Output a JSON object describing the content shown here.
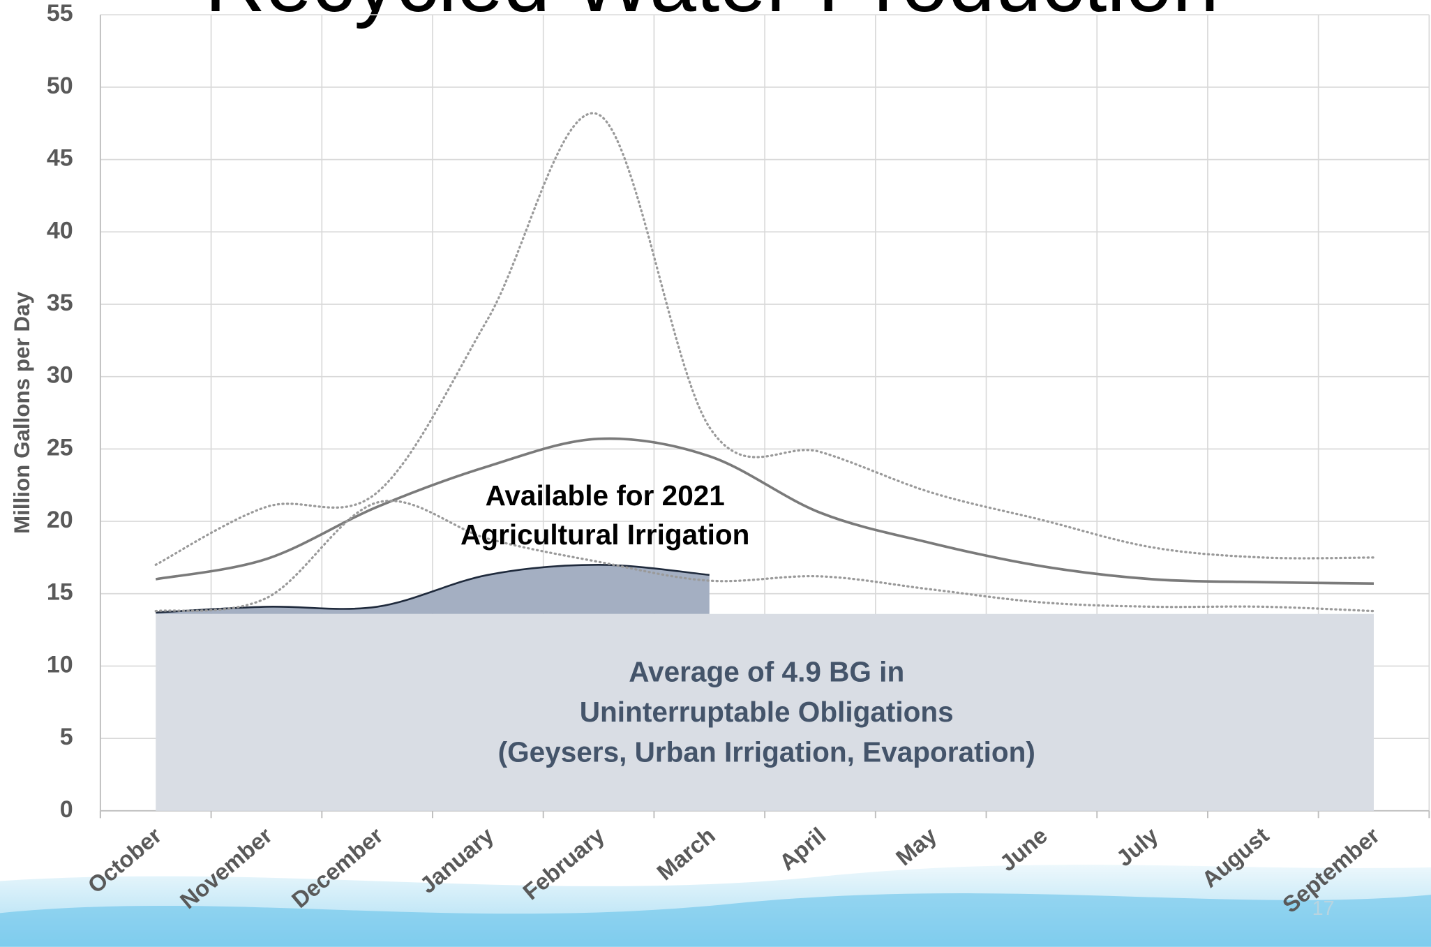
{
  "chart_data": {
    "type": "line",
    "title": "Recycled Water Production",
    "y_label": "Million Gallons per Day",
    "categories": [
      "October",
      "November",
      "December",
      "January",
      "February",
      "March",
      "April",
      "May",
      "June",
      "July",
      "August",
      "September"
    ],
    "ylim": [
      0,
      55
    ],
    "yticks": [
      0,
      5,
      10,
      15,
      20,
      25,
      30,
      35,
      40,
      45,
      50,
      55
    ],
    "grid": true,
    "series": [
      {
        "color": "#7a7a7a",
        "style": "solid",
        "values": [
          16.0,
          17.4,
          21.0,
          23.8,
          25.7,
          24.5,
          20.6,
          18.5,
          16.9,
          16.0,
          15.8,
          15.7
        ]
      },
      {
        "color": "#9a9a9a",
        "style": "dotted",
        "values": [
          17.0,
          21.0,
          22.0,
          34.0,
          48.1,
          26.5,
          24.8,
          22.0,
          20.1,
          18.2,
          17.5,
          17.5
        ]
      },
      {
        "color": "#9a9a9a",
        "style": "dotted",
        "values": [
          13.8,
          14.7,
          21.3,
          18.8,
          17.2,
          15.9,
          16.2,
          15.3,
          14.4,
          14.1,
          14.1,
          13.8
        ]
      }
    ],
    "area": {
      "color": "#a4afc2",
      "values": [
        13.7,
        14.1,
        14.1,
        16.3,
        17.0,
        16.3,
        null,
        null,
        null,
        null,
        null,
        null
      ]
    },
    "baseline": {
      "color": "#d9dde4",
      "value": 13.6
    },
    "annotations": [
      {
        "lines": [
          "Available for 2021",
          "Agricultural Irrigation"
        ],
        "color": "#000000"
      },
      {
        "lines": [
          "Average of 4.9 BG in",
          "Uninterruptable Obligations",
          "(Geysers, Urban Irrigation, Evaporation)"
        ],
        "color": "#44546a"
      }
    ],
    "page_number": 17
  }
}
